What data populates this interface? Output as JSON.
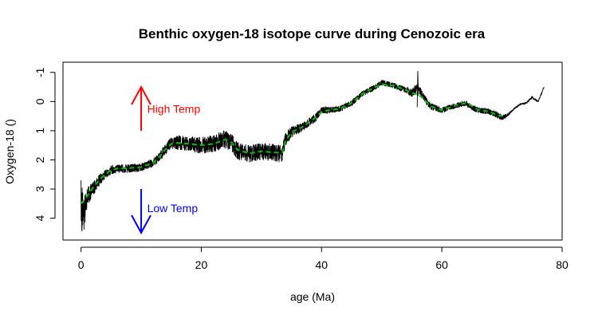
{
  "chart_data": {
    "type": "line",
    "title": "Benthic oxygen-18 isotope curve during Cenozoic era",
    "xlabel": "age (Ma)",
    "ylabel": "Oxygen-18 ()",
    "xlim": [
      -3,
      80
    ],
    "ylim": [
      4.75,
      -1.35
    ],
    "y_reversed": true,
    "x_ticks": [
      0,
      20,
      40,
      60,
      80
    ],
    "y_ticks": [
      -1,
      0,
      1,
      2,
      3,
      4
    ],
    "grid": false,
    "legend": "none",
    "series": [
      {
        "role": "raw",
        "color": "#000000",
        "x": [
          0,
          0.5,
          1,
          2,
          3,
          4,
          5,
          6,
          8,
          10,
          12,
          13,
          14,
          15,
          16,
          18,
          20,
          22,
          24,
          25,
          26,
          28,
          30,
          32,
          33.5,
          34,
          35,
          37,
          39,
          40,
          41,
          43,
          45,
          47,
          49,
          50,
          52,
          54,
          55,
          56,
          57,
          58,
          60,
          62,
          64,
          65,
          66,
          68,
          69,
          70,
          71,
          72,
          73,
          74,
          75,
          76,
          77
        ],
        "y": [
          3.6,
          3.9,
          3.3,
          3.0,
          2.7,
          2.5,
          2.35,
          2.3,
          2.3,
          2.25,
          2.1,
          1.9,
          1.65,
          1.4,
          1.4,
          1.45,
          1.5,
          1.45,
          1.3,
          1.4,
          1.7,
          1.8,
          1.7,
          1.75,
          1.8,
          1.3,
          1.05,
          0.85,
          0.55,
          0.3,
          0.3,
          0.25,
          0.05,
          -0.3,
          -0.5,
          -0.65,
          -0.55,
          -0.4,
          -0.3,
          -0.5,
          -0.15,
          0.15,
          0.3,
          0.15,
          0.05,
          0.2,
          0.3,
          0.35,
          0.45,
          0.55,
          0.45,
          0.25,
          0.1,
          0.05,
          -0.15,
          0.0,
          -0.5
        ],
        "noise": [
          0.9,
          0.6,
          0.35,
          0.25,
          0.2,
          0.15,
          0.15,
          0.15,
          0.15,
          0.15,
          0.15,
          0.15,
          0.2,
          0.2,
          0.25,
          0.25,
          0.3,
          0.3,
          0.35,
          0.3,
          0.3,
          0.3,
          0.3,
          0.3,
          0.3,
          0.25,
          0.2,
          0.15,
          0.15,
          0.12,
          0.12,
          0.1,
          0.1,
          0.1,
          0.1,
          0.1,
          0.1,
          0.1,
          0.15,
          0.15,
          0.12,
          0.12,
          0.1,
          0.1,
          0.1,
          0.1,
          0.1,
          0.1,
          0.12,
          0.1,
          0.05,
          0.03,
          0.03,
          0.03,
          0.03,
          0.03,
          0.03
        ]
      },
      {
        "role": "smoothed",
        "color": "#00bb00",
        "x": [
          0,
          1,
          2,
          3,
          4,
          5,
          6,
          8,
          10,
          12,
          13,
          14,
          15,
          16,
          18,
          20,
          22,
          24,
          25,
          26,
          28,
          30,
          32,
          33.5,
          34,
          35,
          37,
          39,
          40,
          41,
          43,
          45,
          47,
          49,
          50,
          52,
          54,
          55,
          56,
          57,
          58,
          60,
          62,
          64,
          65,
          66,
          68,
          69,
          70
        ],
        "y": [
          3.5,
          3.25,
          2.95,
          2.7,
          2.5,
          2.35,
          2.3,
          2.28,
          2.25,
          2.1,
          1.9,
          1.65,
          1.45,
          1.42,
          1.45,
          1.5,
          1.45,
          1.3,
          1.4,
          1.65,
          1.78,
          1.7,
          1.75,
          1.75,
          1.35,
          1.05,
          0.85,
          0.55,
          0.35,
          0.3,
          0.25,
          0.05,
          -0.3,
          -0.5,
          -0.6,
          -0.55,
          -0.4,
          -0.3,
          -0.25,
          -0.1,
          0.15,
          0.3,
          0.15,
          0.05,
          0.15,
          0.28,
          0.35,
          0.45,
          0.5
        ]
      }
    ],
    "annotations": [
      {
        "text": "High Temp",
        "color": "#ff0000",
        "arrow": "up",
        "arrow_x": 10,
        "arrow_from": 1.0,
        "arrow_to": -0.5,
        "label_x": 11,
        "label_y": 0.25
      },
      {
        "text": "Low Temp",
        "color": "#0000ff",
        "arrow": "down",
        "arrow_x": 10,
        "arrow_from": 3.0,
        "arrow_to": 4.5,
        "label_x": 11,
        "label_y": 3.65
      }
    ]
  }
}
